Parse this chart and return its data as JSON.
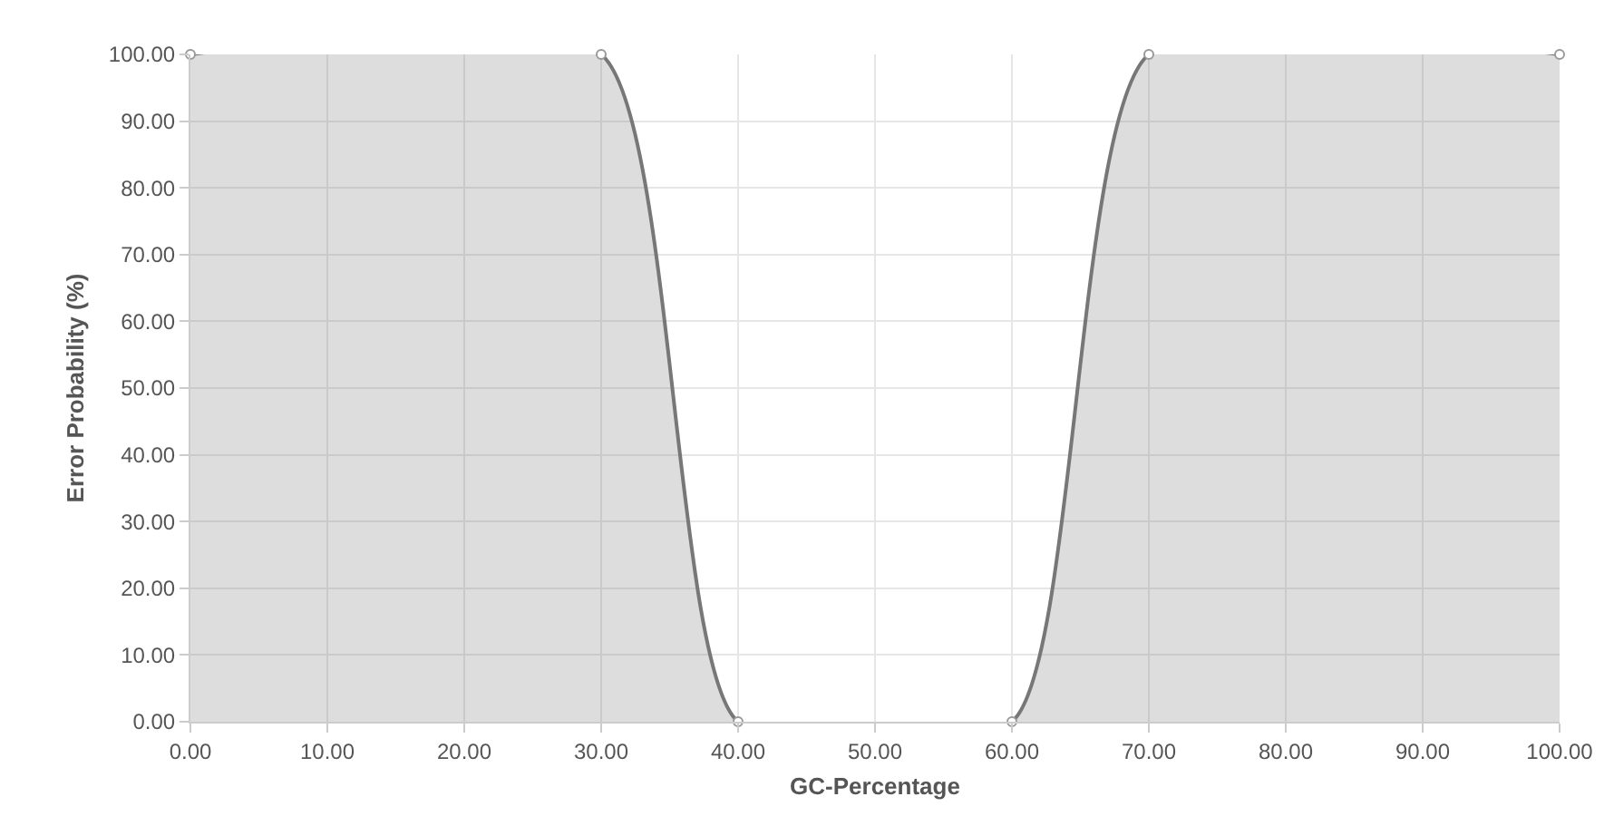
{
  "chart_data": {
    "type": "area",
    "xlabel": "GC-Percentage",
    "ylabel": "Error Probability (%)",
    "x": [
      0,
      30,
      40,
      60,
      70,
      100
    ],
    "series": [
      {
        "color": "#777777",
        "values": [
          100,
          100,
          0,
          0,
          100,
          100
        ]
      }
    ],
    "xlim": [
      0,
      100
    ],
    "xticks": [
      {
        "value": 0,
        "label": "0.00"
      },
      {
        "value": 10,
        "label": "10.00"
      },
      {
        "value": 20,
        "label": "20.00"
      },
      {
        "value": 30,
        "label": "30.00"
      },
      {
        "value": 40,
        "label": "40.00"
      },
      {
        "value": 50,
        "label": "50.00"
      },
      {
        "value": 60,
        "label": "60.00"
      },
      {
        "value": 70,
        "label": "70.00"
      },
      {
        "value": 80,
        "label": "80.00"
      },
      {
        "value": 90,
        "label": "90.00"
      },
      {
        "value": 100,
        "label": "100.00"
      }
    ],
    "ylim": [
      0,
      100
    ],
    "yticks": [
      {
        "value": 0,
        "label": "0.00"
      },
      {
        "value": 10,
        "label": "10.00"
      },
      {
        "value": 20,
        "label": "20.00"
      },
      {
        "value": 30,
        "label": "30.00"
      },
      {
        "value": 40,
        "label": "40.00"
      },
      {
        "value": 50,
        "label": "50.00"
      },
      {
        "value": 60,
        "label": "60.00"
      },
      {
        "value": 70,
        "label": "70.00"
      },
      {
        "value": 80,
        "label": "80.00"
      },
      {
        "value": 90,
        "label": "90.00"
      },
      {
        "value": 100,
        "label": "100.00"
      }
    ],
    "grid": true,
    "marker": "circle",
    "line_style": "solid"
  }
}
